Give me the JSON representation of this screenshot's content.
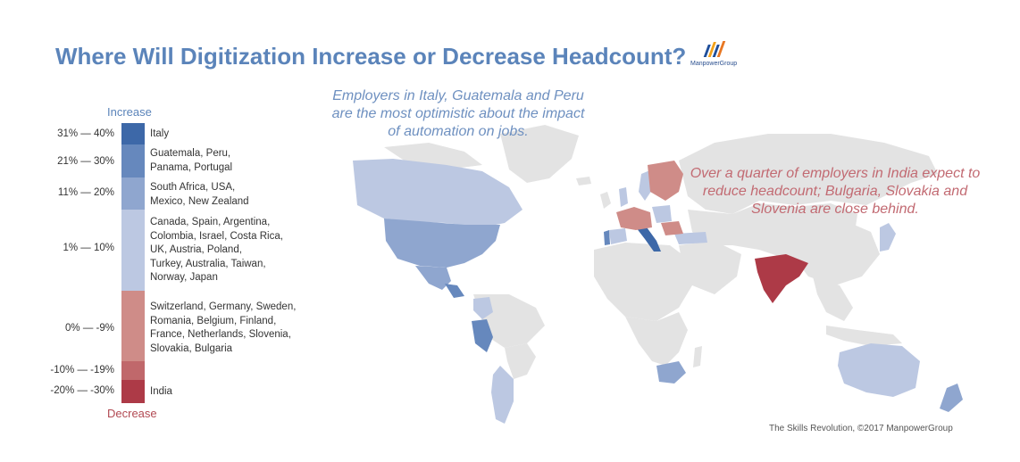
{
  "title": "Where Will Digitization Increase or Decrease Headcount?",
  "logo_text": "ManpowerGroup",
  "legend": {
    "increase_label": "Increase",
    "decrease_label": "Decrease",
    "bins": [
      {
        "range": "31% — 40%",
        "countries": [
          "Italy"
        ],
        "color": "#3d68a8"
      },
      {
        "range": "21% — 30%",
        "countries": [
          "Guatemala, Peru,",
          "Panama, Portugal"
        ],
        "color": "#6688bd"
      },
      {
        "range": "11% — 20%",
        "countries": [
          "South Africa, USA,",
          "Mexico, New Zealand"
        ],
        "color": "#8fa6cf"
      },
      {
        "range": "1% — 10%",
        "countries": [
          "Canada, Spain, Argentina,",
          "Colombia, Israel, Costa Rica,",
          "UK, Austria, Poland,",
          "Turkey, Australia, Taiwan,",
          "Norway, Japan"
        ],
        "color": "#bcc8e2"
      },
      {
        "range": "0% — -9%",
        "countries": [
          "Switzerland, Germany, Sweden,",
          "Romania, Belgium, Finland,",
          "France, Netherlands, Slovenia,",
          "Slovakia, Bulgaria"
        ],
        "color": "#cf8c88"
      },
      {
        "range": "-10% — -19%",
        "countries": [],
        "color": "#c0686b"
      },
      {
        "range": "-20% — -30%",
        "countries": [
          "India"
        ],
        "color": "#ad3a47"
      }
    ]
  },
  "callouts": {
    "optimistic": "Employers in Italy, Guatemala and Peru are the most optimistic about the impact of automation on jobs.",
    "pessimistic": "Over a quarter of employers in India expect to reduce headcount; Bulgaria, Slovakia and Slovenia are close behind."
  },
  "source": "The Skills Revolution, ©2017 ManpowerGroup",
  "colors": {
    "land": "#e3e3e3",
    "title": "#5b84ba",
    "decrease": "#b24a53"
  }
}
